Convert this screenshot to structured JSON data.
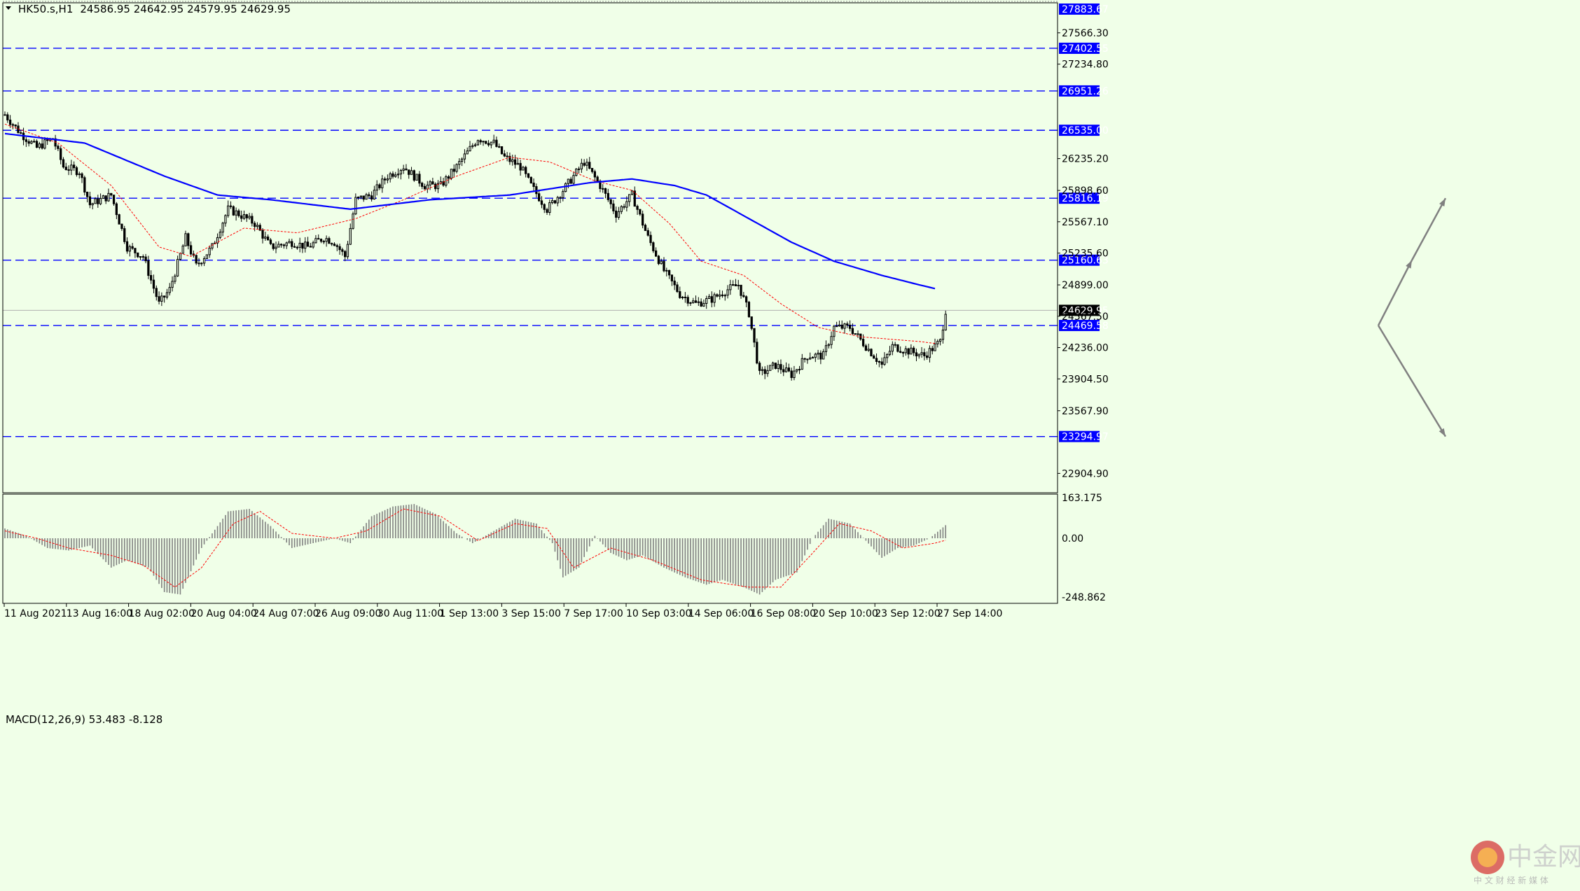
{
  "header": {
    "symbol": "HK50.s,H1",
    "ohlc": "24586.95 24642.95 24579.95 24629.95"
  },
  "macd": {
    "label": "MACD(12,26,9) 53.483 -8.128",
    "scale_labels": [
      "163.175",
      "0.00",
      "-248.862"
    ]
  },
  "watermark": {
    "text": "中金网",
    "sub": "中 文 财 经 新 媒 体"
  },
  "colors": {
    "background": "#f0ffe8",
    "candle": "#000000",
    "ma_slow": "#0000ff",
    "ma_fast": "#ff0000",
    "level_line": "#0000ff",
    "level_label_bg": "#0000ff",
    "current_label_bg": "#000000",
    "arrow": "#808080",
    "macd_hist": "#808080",
    "macd_signal": "#ff0000"
  },
  "chart_data": {
    "type": "candlestick",
    "ylim": [
      22700,
      27883.67
    ],
    "price_ticks": [
      "27566.30",
      "27234.80",
      "26235.20",
      "25898.60",
      "25567.10",
      "25235.60",
      "24899.00",
      "24567.50",
      "24236.00",
      "23904.50",
      "23567.90",
      "22904.90"
    ],
    "horizontal_levels": [
      "27883.67",
      "27402.55",
      "26951.26",
      "26535.00",
      "25816.19",
      "25160.63",
      "24469.58",
      "23294.97"
    ],
    "current_price": "24629.95",
    "x_labels": [
      "11 Aug 2021",
      "13 Aug 16:00",
      "18 Aug 02:00",
      "20 Aug 04:00",
      "24 Aug 07:00",
      "26 Aug 09:00",
      "30 Aug 11:00",
      "1 Sep 13:00",
      "3 Sep 15:00",
      "7 Sep 17:00",
      "10 Sep 03:00",
      "14 Sep 06:00",
      "16 Sep 08:00",
      "20 Sep 10:00",
      "23 Sep 12:00",
      "27 Sep 14:00"
    ],
    "close_path": [
      [
        0,
        26700
      ],
      [
        6,
        26500
      ],
      [
        12,
        26350
      ],
      [
        18,
        26450
      ],
      [
        22,
        26150
      ],
      [
        28,
        26100
      ],
      [
        32,
        25750
      ],
      [
        40,
        25850
      ],
      [
        46,
        25300
      ],
      [
        52,
        25200
      ],
      [
        58,
        24700
      ],
      [
        62,
        24850
      ],
      [
        68,
        25400
      ],
      [
        72,
        25100
      ],
      [
        78,
        25300
      ],
      [
        84,
        25700
      ],
      [
        88,
        25650
      ],
      [
        94,
        25550
      ],
      [
        100,
        25300
      ],
      [
        108,
        25350
      ],
      [
        114,
        25300
      ],
      [
        120,
        25400
      ],
      [
        124,
        25350
      ],
      [
        128,
        25200
      ],
      [
        132,
        25800
      ],
      [
        138,
        25850
      ],
      [
        144,
        26050
      ],
      [
        150,
        26150
      ],
      [
        158,
        25950
      ],
      [
        164,
        25950
      ],
      [
        170,
        26150
      ],
      [
        178,
        26450
      ],
      [
        184,
        26400
      ],
      [
        188,
        26250
      ],
      [
        194,
        26150
      ],
      [
        198,
        25950
      ],
      [
        204,
        25700
      ],
      [
        210,
        25900
      ],
      [
        218,
        26200
      ],
      [
        224,
        25950
      ],
      [
        230,
        25650
      ],
      [
        236,
        25850
      ],
      [
        242,
        25400
      ],
      [
        248,
        25050
      ],
      [
        254,
        24800
      ],
      [
        260,
        24700
      ],
      [
        266,
        24750
      ],
      [
        272,
        24850
      ],
      [
        276,
        24900
      ],
      [
        280,
        24600
      ],
      [
        284,
        23950
      ],
      [
        290,
        24050
      ],
      [
        296,
        23950
      ],
      [
        302,
        24150
      ],
      [
        308,
        24150
      ],
      [
        312,
        24450
      ],
      [
        318,
        24450
      ],
      [
        324,
        24250
      ],
      [
        330,
        24050
      ],
      [
        334,
        24250
      ],
      [
        340,
        24200
      ],
      [
        346,
        24150
      ],
      [
        352,
        24300
      ],
      [
        354,
        24630
      ]
    ],
    "ma_fast_path": [
      [
        0,
        26600
      ],
      [
        20,
        26400
      ],
      [
        40,
        25950
      ],
      [
        58,
        25300
      ],
      [
        70,
        25200
      ],
      [
        90,
        25500
      ],
      [
        110,
        25450
      ],
      [
        132,
        25600
      ],
      [
        150,
        25800
      ],
      [
        170,
        26050
      ],
      [
        190,
        26250
      ],
      [
        205,
        26200
      ],
      [
        222,
        26000
      ],
      [
        236,
        25900
      ],
      [
        250,
        25550
      ],
      [
        262,
        25150
      ],
      [
        278,
        25000
      ],
      [
        292,
        24700
      ],
      [
        306,
        24450
      ],
      [
        322,
        24350
      ],
      [
        344,
        24300
      ],
      [
        350,
        24280
      ]
    ],
    "ma_slow_path": [
      [
        0,
        26500
      ],
      [
        30,
        26400
      ],
      [
        60,
        26050
      ],
      [
        80,
        25850
      ],
      [
        100,
        25800
      ],
      [
        130,
        25700
      ],
      [
        160,
        25800
      ],
      [
        190,
        25850
      ],
      [
        220,
        25980
      ],
      [
        236,
        26020
      ],
      [
        252,
        25950
      ],
      [
        264,
        25850
      ],
      [
        280,
        25600
      ],
      [
        296,
        25350
      ],
      [
        312,
        25150
      ],
      [
        330,
        25000
      ],
      [
        344,
        24900
      ],
      [
        350,
        24860
      ]
    ],
    "projection_arrows": [
      {
        "from": [
          24469.58
        ],
        "to": [
          25160.63,
          25816.19
        ],
        "direction": "up"
      },
      {
        "from": [
          24469.58
        ],
        "to": [
          23294.97
        ],
        "direction": "down"
      }
    ],
    "macd": {
      "ylim": [
        -248.862,
        163.175
      ],
      "histogram_path": [
        [
          0,
          40
        ],
        [
          8,
          10
        ],
        [
          16,
          -40
        ],
        [
          24,
          -50
        ],
        [
          32,
          -30
        ],
        [
          40,
          -120
        ],
        [
          46,
          -90
        ],
        [
          54,
          -120
        ],
        [
          60,
          -220
        ],
        [
          66,
          -230
        ],
        [
          74,
          -40
        ],
        [
          84,
          110
        ],
        [
          92,
          120
        ],
        [
          100,
          50
        ],
        [
          108,
          -40
        ],
        [
          116,
          -20
        ],
        [
          124,
          0
        ],
        [
          130,
          -20
        ],
        [
          138,
          90
        ],
        [
          146,
          130
        ],
        [
          154,
          140
        ],
        [
          162,
          100
        ],
        [
          170,
          20
        ],
        [
          176,
          -20
        ],
        [
          184,
          30
        ],
        [
          192,
          80
        ],
        [
          200,
          60
        ],
        [
          206,
          -20
        ],
        [
          210,
          -160
        ],
        [
          216,
          -120
        ],
        [
          222,
          10
        ],
        [
          228,
          -60
        ],
        [
          234,
          -90
        ],
        [
          240,
          -70
        ],
        [
          248,
          -120
        ],
        [
          256,
          -160
        ],
        [
          264,
          -190
        ],
        [
          270,
          -170
        ],
        [
          278,
          -200
        ],
        [
          284,
          -230
        ],
        [
          290,
          -170
        ],
        [
          298,
          -140
        ],
        [
          304,
          0
        ],
        [
          310,
          80
        ],
        [
          318,
          60
        ],
        [
          324,
          -10
        ],
        [
          330,
          -80
        ],
        [
          336,
          -40
        ],
        [
          342,
          -30
        ],
        [
          348,
          0
        ],
        [
          354,
          53.483
        ]
      ],
      "signal_path": [
        [
          0,
          30
        ],
        [
          12,
          0
        ],
        [
          24,
          -40
        ],
        [
          40,
          -70
        ],
        [
          52,
          -110
        ],
        [
          64,
          -200
        ],
        [
          74,
          -120
        ],
        [
          86,
          60
        ],
        [
          96,
          110
        ],
        [
          108,
          20
        ],
        [
          124,
          0
        ],
        [
          136,
          30
        ],
        [
          150,
          120
        ],
        [
          164,
          90
        ],
        [
          178,
          -10
        ],
        [
          192,
          60
        ],
        [
          204,
          40
        ],
        [
          214,
          -120
        ],
        [
          228,
          -40
        ],
        [
          244,
          -90
        ],
        [
          262,
          -170
        ],
        [
          280,
          -200
        ],
        [
          292,
          -200
        ],
        [
          304,
          -60
        ],
        [
          314,
          60
        ],
        [
          326,
          30
        ],
        [
          338,
          -40
        ],
        [
          350,
          -20
        ],
        [
          354,
          -8.128
        ]
      ]
    }
  }
}
